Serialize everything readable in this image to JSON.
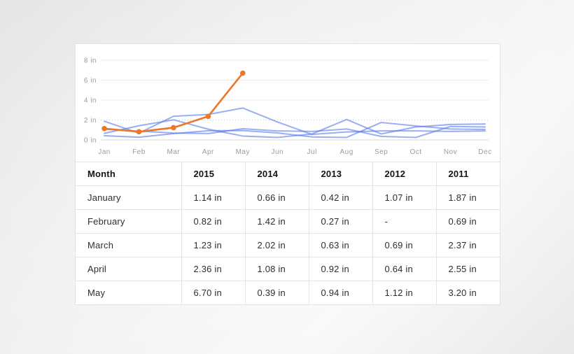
{
  "colors": {
    "accent_orange": "#ee7628",
    "series_blue": "#5b7ceb",
    "grid": "#ebebeb",
    "grid_zero": "#d9d9d9",
    "grid_dotted": "#c4c4c4",
    "axis_text": "#9b9b9b",
    "card_background": "#ffffff"
  },
  "chart_data": {
    "type": "line",
    "x": [
      "Jan",
      "Feb",
      "Mar",
      "Apr",
      "May",
      "Jun",
      "Jul",
      "Aug",
      "Sep",
      "Oct",
      "Nov",
      "Dec"
    ],
    "y_ticks": [
      "0 in",
      "2 in",
      "4 in",
      "6 in",
      "8 in"
    ],
    "y_tick_values": [
      0,
      2,
      4,
      6,
      8
    ],
    "ylim": [
      0,
      8
    ],
    "grid": true,
    "legend": "none",
    "unit": "in",
    "series": [
      {
        "name": "2011",
        "style": "blue",
        "values": [
          1.87,
          0.69,
          2.37,
          2.55,
          3.2,
          1.8,
          0.55,
          0.8,
          0.9,
          0.9,
          0.85,
          0.9
        ]
      },
      {
        "name": "2012",
        "style": "blue",
        "values": [
          1.07,
          null,
          0.69,
          0.64,
          1.12,
          0.9,
          0.85,
          1.1,
          0.35,
          0.25,
          1.35,
          1.3
        ]
      },
      {
        "name": "2013",
        "style": "blue",
        "values": [
          0.42,
          0.27,
          0.63,
          0.92,
          0.94,
          0.7,
          0.3,
          0.25,
          1.75,
          1.4,
          1.1,
          1.05
        ]
      },
      {
        "name": "2014",
        "style": "blue",
        "values": [
          0.66,
          1.42,
          2.02,
          1.08,
          0.39,
          0.25,
          0.6,
          2.05,
          0.6,
          1.3,
          1.55,
          1.6
        ]
      },
      {
        "name": "2015",
        "style": "orange",
        "markers": true,
        "values": [
          1.14,
          0.82,
          1.23,
          2.36,
          6.7,
          null,
          null,
          null,
          null,
          null,
          null,
          null
        ]
      }
    ]
  },
  "table": {
    "columns": [
      "Month",
      "2015",
      "2014",
      "2013",
      "2012",
      "2011"
    ],
    "rows": [
      {
        "month": "January",
        "cells": [
          "1.14 in",
          "0.66 in",
          "0.42 in",
          "1.07 in",
          "1.87 in"
        ]
      },
      {
        "month": "February",
        "cells": [
          "0.82 in",
          "1.42 in",
          "0.27 in",
          "-",
          "0.69 in"
        ]
      },
      {
        "month": "March",
        "cells": [
          "1.23 in",
          "2.02 in",
          "0.63 in",
          "0.69 in",
          "2.37 in"
        ]
      },
      {
        "month": "April",
        "cells": [
          "2.36 in",
          "1.08 in",
          "0.92 in",
          "0.64 in",
          "2.55 in"
        ]
      },
      {
        "month": "May",
        "cells": [
          "6.70 in",
          "0.39 in",
          "0.94 in",
          "1.12 in",
          "3.20 in"
        ]
      }
    ]
  }
}
